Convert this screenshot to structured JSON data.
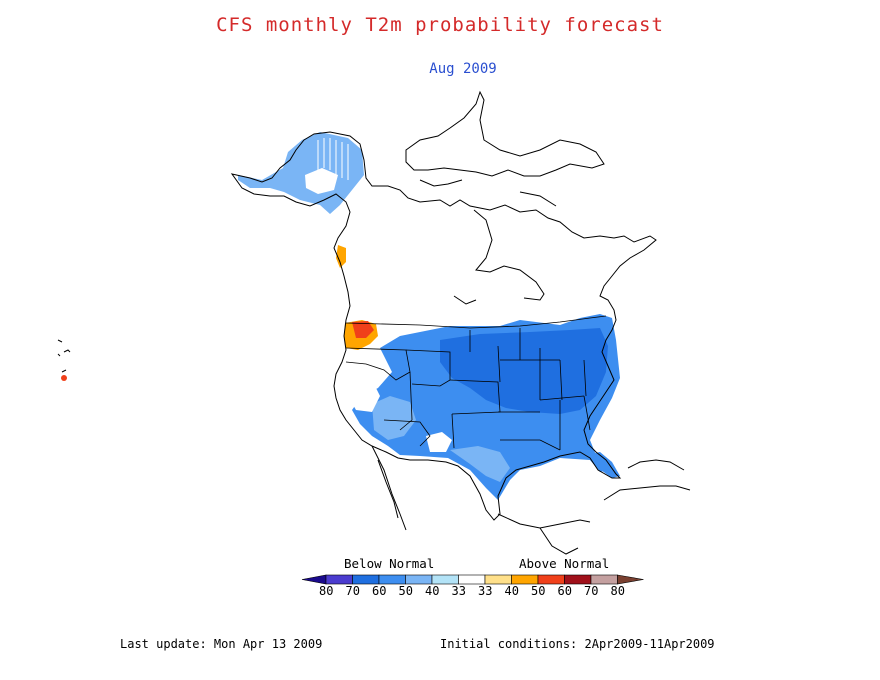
{
  "title": "CFS monthly T2m probability forecast",
  "subtitle": "Aug 2009",
  "legend": {
    "below_label": "Below Normal",
    "above_label": "Above Normal",
    "ticks": [
      "80",
      "70",
      "60",
      "50",
      "40",
      "33",
      "33",
      "40",
      "50",
      "60",
      "70",
      "80"
    ],
    "colors": [
      "#1a0a8c",
      "#4b3ccf",
      "#1f6fe0",
      "#3d8ef0",
      "#7ab5f5",
      "#b3e3f7",
      "#ffffff",
      "#ffe08a",
      "#ffa500",
      "#f0401a",
      "#a0101a",
      "#c4a0a0",
      "#7a4030"
    ]
  },
  "footer": {
    "last_update": "Last update: Mon Apr 13 2009",
    "initial_conditions": "Initial conditions: 2Apr2009-11Apr2009"
  },
  "colors": {
    "title": "#d42a2a",
    "subtitle": "#2a4fd0",
    "below_normal_main": "#3d8ef0",
    "below_normal_dark": "#1f6fe0",
    "below_normal_light": "#7ab5f5",
    "above_normal_dark": "#f0401a",
    "above_normal_light": "#ffa500",
    "outline": "#000000"
  }
}
